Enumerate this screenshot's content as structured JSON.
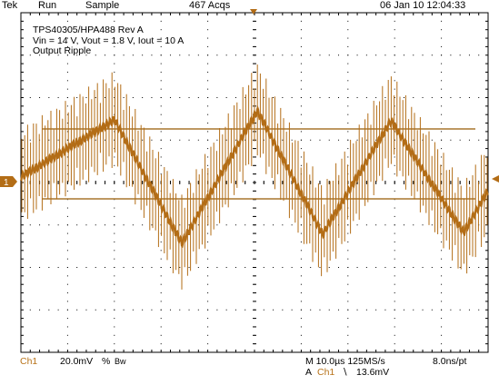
{
  "status": {
    "brand": "Tek",
    "run_state": "Run",
    "acq_mode": "Sample",
    "acq_count": "467 Acqs",
    "timestamp": "06 Jan 10 12:04:33"
  },
  "annotation": {
    "line1": "TPS40305/HPA488 Rev A",
    "line2": "Vin = 14 V, Vout = 1.8 V, Iout = 10 A",
    "line3": "Output Ripple"
  },
  "channel_marker": "1",
  "bottom": {
    "ch_label": "Ch1",
    "ch_scale": "20.0mV",
    "ch_coupling": "%",
    "ch_bw": "Bw",
    "timebase": "M 10.0µs 125MS/s",
    "resolution": "8.0ns/pt",
    "trigger_prefix": "A",
    "trigger_src": "Ch1",
    "trigger_slope": "∖",
    "trigger_level": "13.6mV"
  },
  "colors": {
    "trace": "#b36d16",
    "graticule": "#000000",
    "cursor": "#a8762e"
  }
}
